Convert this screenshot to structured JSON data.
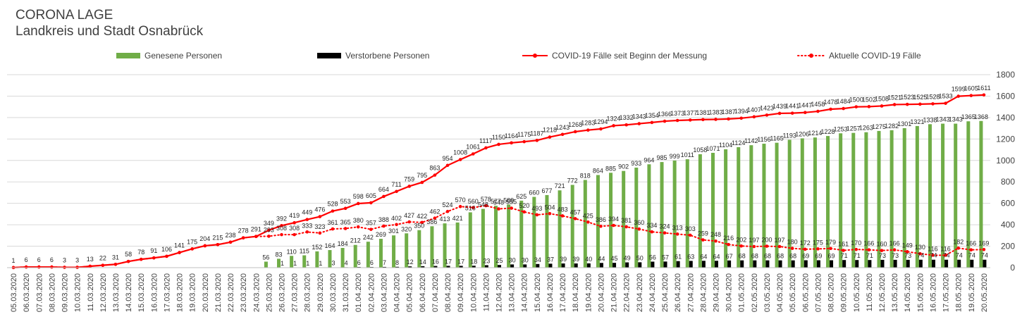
{
  "title": "CORONA LAGE",
  "subtitle": "Landkreis und Stadt Osnabrück",
  "chart_data": {
    "type": "bar",
    "categories": [
      "05.03.2020",
      "06.03.2020",
      "07.03.2020",
      "08.03.2020",
      "09.03.2020",
      "10.03.2020",
      "11.03.2020",
      "12.03.2020",
      "13.03.2020",
      "14.03.2020",
      "15.03.2020",
      "16.03.2020",
      "17.03.2020",
      "18.03.2020",
      "19.03.2020",
      "20.03.2020",
      "21.03.2020",
      "22.03.2020",
      "23.03.2020",
      "24.03.2020",
      "25.03.2020",
      "26.03.2020",
      "27.03.2020",
      "28.03.2020",
      "29.03.2020",
      "30.03.2020",
      "31.03.2020",
      "01.04.2020",
      "02.04.2020",
      "03.04.2020",
      "04.04.2020",
      "05.04.2020",
      "06.04.2020",
      "07.04.2020",
      "08.04.2020",
      "09.04.2020",
      "10.04.2020",
      "11.04.2020",
      "12.04.2020",
      "13.04.2020",
      "14.04.2020",
      "15.04.2020",
      "16.04.2020",
      "17.04.2020",
      "18.04.2020",
      "19.04.2020",
      "20.04.2020",
      "21.04.2020",
      "22.04.2020",
      "23.04.2020",
      "24.04.2020",
      "25.04.2020",
      "26.04.2020",
      "27.04.2020",
      "28.04.2020",
      "29.04.2020",
      "30.04.2020",
      "01.05.2020",
      "02.05.2020",
      "03.05.2020",
      "04.05.2020",
      "05.05.2020",
      "06.05.2020",
      "07.05.2020",
      "08.05.2020",
      "09.05.2020",
      "10.05.2020",
      "11.05.2020",
      "12.05.2020",
      "13.05.2020",
      "14.05.2020",
      "15.05.2020",
      "16.05.2020",
      "17.05.2020",
      "18.05.2020",
      "19.05.2020",
      "20.05.2020"
    ],
    "series": [
      {
        "name": "Genesene Personen",
        "kind": "bar",
        "color": "#70ad47",
        "values": [
          0,
          0,
          0,
          0,
          0,
          0,
          0,
          0,
          0,
          0,
          0,
          0,
          0,
          0,
          0,
          0,
          0,
          0,
          0,
          0,
          56,
          83,
          110,
          115,
          152,
          164,
          184,
          212,
          242,
          269,
          301,
          320,
          350,
          386,
          413,
          421,
          516,
          548,
          577,
          589,
          625,
          660,
          677,
          721,
          772,
          818,
          864,
          885,
          902,
          933,
          964,
          985,
          999,
          1011,
          1058,
          1071,
          1104,
          1124,
          1142,
          1156,
          1165,
          1193,
          1206,
          1214,
          1228,
          1253,
          1257,
          1263,
          1275,
          1282,
          1301,
          1321,
          1338,
          1343,
          1343,
          1365,
          1368
        ]
      },
      {
        "name": "Verstorbene Personen",
        "kind": "bar",
        "color": "#000000",
        "values": [
          0,
          0,
          0,
          0,
          0,
          0,
          0,
          0,
          0,
          0,
          0,
          0,
          0,
          0,
          0,
          0,
          0,
          0,
          0,
          0,
          0,
          1,
          1,
          1,
          1,
          3,
          4,
          6,
          6,
          7,
          8,
          12,
          14,
          16,
          17,
          17,
          18,
          23,
          25,
          30,
          30,
          34,
          37,
          39,
          39,
          40,
          44,
          45,
          49,
          50,
          56,
          57,
          61,
          63,
          64,
          64,
          67,
          68,
          68,
          68,
          68,
          68,
          69,
          69,
          69,
          71,
          71,
          71,
          73,
          73,
          73,
          74,
          74,
          74,
          74,
          74,
          74
        ]
      },
      {
        "name": "COVID-19 Fälle seit Beginn der Messung",
        "kind": "line",
        "color": "#ff0000",
        "values": [
          1,
          6,
          6,
          6,
          3,
          3,
          13,
          22,
          31,
          58,
          78,
          91,
          106,
          141,
          175,
          204,
          215,
          238,
          278,
          291,
          349,
          392,
          419,
          449,
          476,
          528,
          553,
          598,
          605,
          664,
          711,
          759,
          795,
          863,
          954,
          1008,
          1061,
          1117,
          1150,
          1164,
          1175,
          1187,
          1218,
          1243,
          1268,
          1283,
          1294,
          1324,
          1332,
          1343,
          1354,
          1366,
          1373,
          1377,
          1381,
          1383,
          1387,
          1394,
          1407,
          1423,
          1439,
          1441,
          1447,
          1458,
          1478,
          1484,
          1500,
          1502,
          1508,
          1521,
          1523,
          1525,
          1528,
          1533,
          1599,
          1605,
          1611
        ]
      },
      {
        "name": "Aktuelle COVID-19 Fälle",
        "kind": "dotted",
        "color": "#ff0000",
        "values": [
          1,
          6,
          6,
          6,
          3,
          3,
          13,
          22,
          31,
          58,
          78,
          91,
          106,
          141,
          175,
          204,
          215,
          238,
          278,
          291,
          293,
          308,
          308,
          333,
          323,
          361,
          365,
          380,
          357,
          388,
          402,
          427,
          422,
          462,
          524,
          570,
          560,
          578,
          548,
          555,
          520,
          493,
          504,
          483,
          457,
          425,
          386,
          394,
          381,
          360,
          334,
          324,
          313,
          303,
          259,
          248,
          216,
          202,
          197,
          200,
          197,
          180,
          172,
          175,
          179,
          161,
          170,
          166,
          160,
          166,
          149,
          130,
          116,
          116,
          182,
          166,
          169
        ]
      }
    ],
    "y_ticks": [
      "0",
      "200",
      "400",
      "600",
      "800",
      "1000",
      "1200",
      "1400",
      "1600",
      "1800"
    ],
    "ylim": [
      0,
      1800
    ],
    "legend": "top",
    "grid": true
  }
}
